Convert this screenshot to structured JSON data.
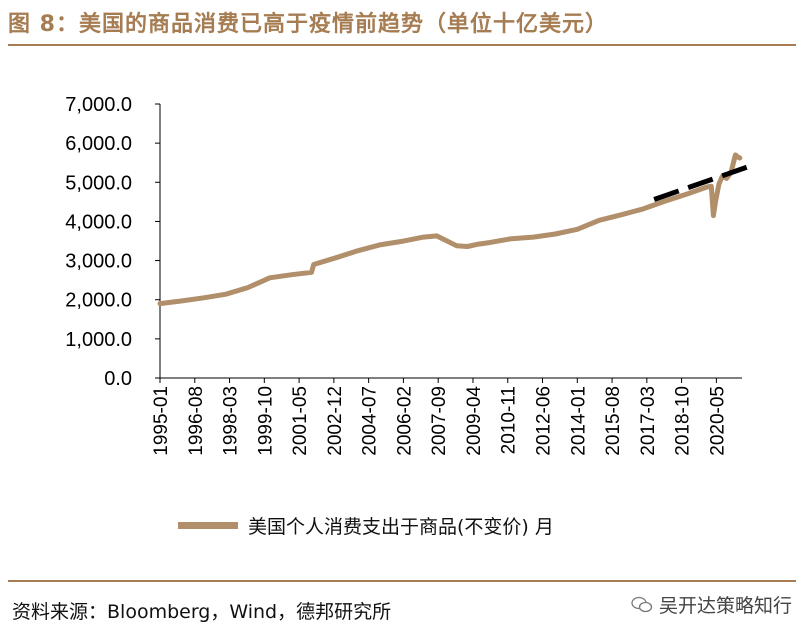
{
  "title": "图 8：美国的商品消费已高于疫情前趋势（单位十亿美元）",
  "source": "资料来源：Bloomberg，Wind，德邦研究所",
  "watermark": "吴开达策略知行",
  "colors": {
    "accent": "#a67c52",
    "series": "#b08f6a",
    "trend": "#000000"
  },
  "chart_data": {
    "type": "line",
    "title": "美国的商品消费已高于疫情前趋势（单位十亿美元）",
    "xlabel": "",
    "ylabel": "",
    "ylim": [
      0,
      7000
    ],
    "yticks": [
      "0.0",
      "1,000.0",
      "2,000.0",
      "3,000.0",
      "4,000.0",
      "5,000.0",
      "6,000.0",
      "7,000.0"
    ],
    "xticks": [
      "1995-01",
      "1996-08",
      "1998-03",
      "1999-10",
      "2001-05",
      "2002-12",
      "2004-07",
      "2006-02",
      "2007-09",
      "2009-04",
      "2010-11",
      "2012-06",
      "2014-01",
      "2015-08",
      "2017-03",
      "2018-10",
      "2020-05"
    ],
    "legend": "美国个人消费支出于商品(不变价) 月",
    "series": [
      {
        "name": "美国个人消费支出于商品(不变价) 月",
        "x": [
          1995.0,
          1996.0,
          1997.0,
          1998.0,
          1999.0,
          2000.0,
          2001.0,
          2001.9,
          2002.0,
          2003.0,
          2004.0,
          2005.0,
          2006.0,
          2007.0,
          2007.6,
          2008.0,
          2008.5,
          2009.0,
          2009.5,
          2010.0,
          2011.0,
          2012.0,
          2013.0,
          2014.0,
          2015.0,
          2016.0,
          2017.0,
          2018.0,
          2019.0,
          2019.9,
          2020.1,
          2020.2,
          2020.3,
          2020.45,
          2020.6,
          2020.8,
          2021.0,
          2021.2,
          2021.3,
          2021.4
        ],
        "values": [
          1900,
          1970,
          2050,
          2140,
          2310,
          2560,
          2640,
          2700,
          2900,
          3070,
          3250,
          3400,
          3490,
          3600,
          3630,
          3520,
          3380,
          3360,
          3420,
          3460,
          3560,
          3600,
          3680,
          3800,
          4030,
          4170,
          4320,
          4520,
          4700,
          4880,
          4900,
          4150,
          4520,
          4950,
          5150,
          5100,
          5250,
          5700,
          5650,
          5620
        ]
      }
    ],
    "trend": {
      "name": "pre-pandemic trend",
      "x": [
        2017.5,
        2022.0
      ],
      "values": [
        4560,
        5440
      ]
    }
  }
}
